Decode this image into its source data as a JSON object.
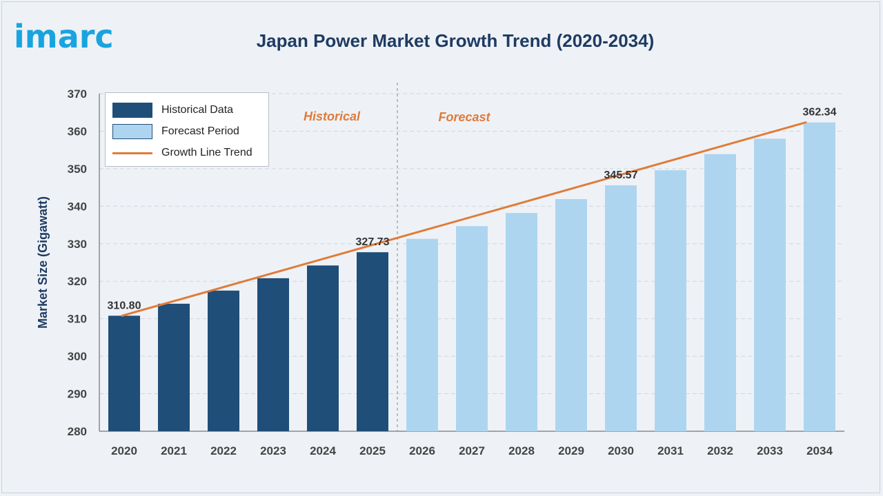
{
  "brand": {
    "logo_text": "imarc",
    "color": "#1aa4df"
  },
  "chart_data": {
    "type": "bar",
    "title": "Japan Power Market Growth Trend (2020-2034)",
    "ylabel": "Market Size (Gigawatt)",
    "xlabel": "",
    "ylim": [
      280,
      370
    ],
    "yticks": [
      280,
      290,
      300,
      310,
      320,
      330,
      340,
      350,
      360,
      370
    ],
    "grid": true,
    "legend_placement": "top-left",
    "categories": [
      "2020",
      "2021",
      "2022",
      "2023",
      "2024",
      "2025",
      "2026",
      "2027",
      "2028",
      "2029",
      "2030",
      "2031",
      "2032",
      "2033",
      "2034"
    ],
    "series": [
      {
        "name": "Historical Data",
        "color": "#1f4e79",
        "x": [
          "2020",
          "2021",
          "2022",
          "2023",
          "2024",
          "2025"
        ],
        "values": [
          310.8,
          314.0,
          317.5,
          320.8,
          324.2,
          327.73
        ]
      },
      {
        "name": "Forecast Period",
        "color": "#aed5f0",
        "x": [
          "2026",
          "2027",
          "2028",
          "2029",
          "2030",
          "2031",
          "2032",
          "2033",
          "2034"
        ],
        "values": [
          331.3,
          334.7,
          338.2,
          341.9,
          345.57,
          349.6,
          353.9,
          358.0,
          362.34
        ]
      }
    ],
    "trend_line": {
      "name": "Growth Line Trend",
      "color": "#e07b39",
      "from": [
        "2020",
        310.8
      ],
      "to": [
        "2034",
        362.34
      ]
    },
    "data_labels": [
      {
        "x": "2020",
        "text": "310.80"
      },
      {
        "x": "2025",
        "text": "327.73"
      },
      {
        "x": "2030",
        "text": "345.57"
      },
      {
        "x": "2034",
        "text": "362.34"
      }
    ],
    "phase_labels": {
      "historical": "Historical",
      "forecast": "Forecast"
    },
    "divider_after": "2025"
  }
}
